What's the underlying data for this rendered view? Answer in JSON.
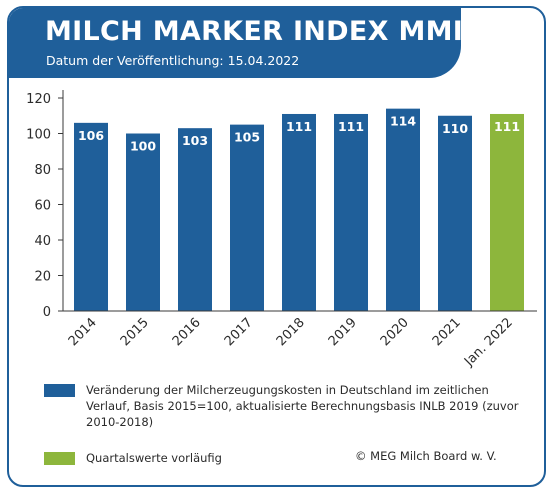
{
  "header": {
    "title": "MILCH MARKER INDEX MMI",
    "subtitle": "Datum der Veröffentlichung: 15.04.2022"
  },
  "chart_data": {
    "type": "bar",
    "categories": [
      "2014",
      "2015",
      "2016",
      "2017",
      "2018",
      "2019",
      "2020",
      "2021",
      "Jan. 2022"
    ],
    "values": [
      106,
      100,
      103,
      105,
      111,
      111,
      114,
      110,
      111
    ],
    "data_labels": [
      "106",
      "100",
      "103",
      "105",
      "111",
      "111",
      "114",
      "110",
      "111"
    ],
    "yticks": [
      "0",
      "20",
      "40",
      "60",
      "80",
      "100",
      "120"
    ],
    "ylim": [
      0,
      120
    ],
    "grid": false,
    "colors": {
      "annual": "#1f5f9a",
      "preliminary": "#8db63c"
    },
    "bar_series": [
      "annual",
      "annual",
      "annual",
      "annual",
      "annual",
      "annual",
      "annual",
      "annual",
      "preliminary"
    ]
  },
  "legend": {
    "items": [
      {
        "text": "Veränderung der Milcherzeugungskosten in Deutschland im zeitlichen Verlauf, Basis 2015=100, aktualisierte Berechnungsbasis INLB 2019 (zuvor 2010-2018)",
        "color": "#1f5f9a"
      },
      {
        "text": "Quartalswerte vorläufig",
        "color": "#8db63c"
      }
    ]
  },
  "footer": {
    "copyright": "© MEG Milch Board w. V."
  }
}
